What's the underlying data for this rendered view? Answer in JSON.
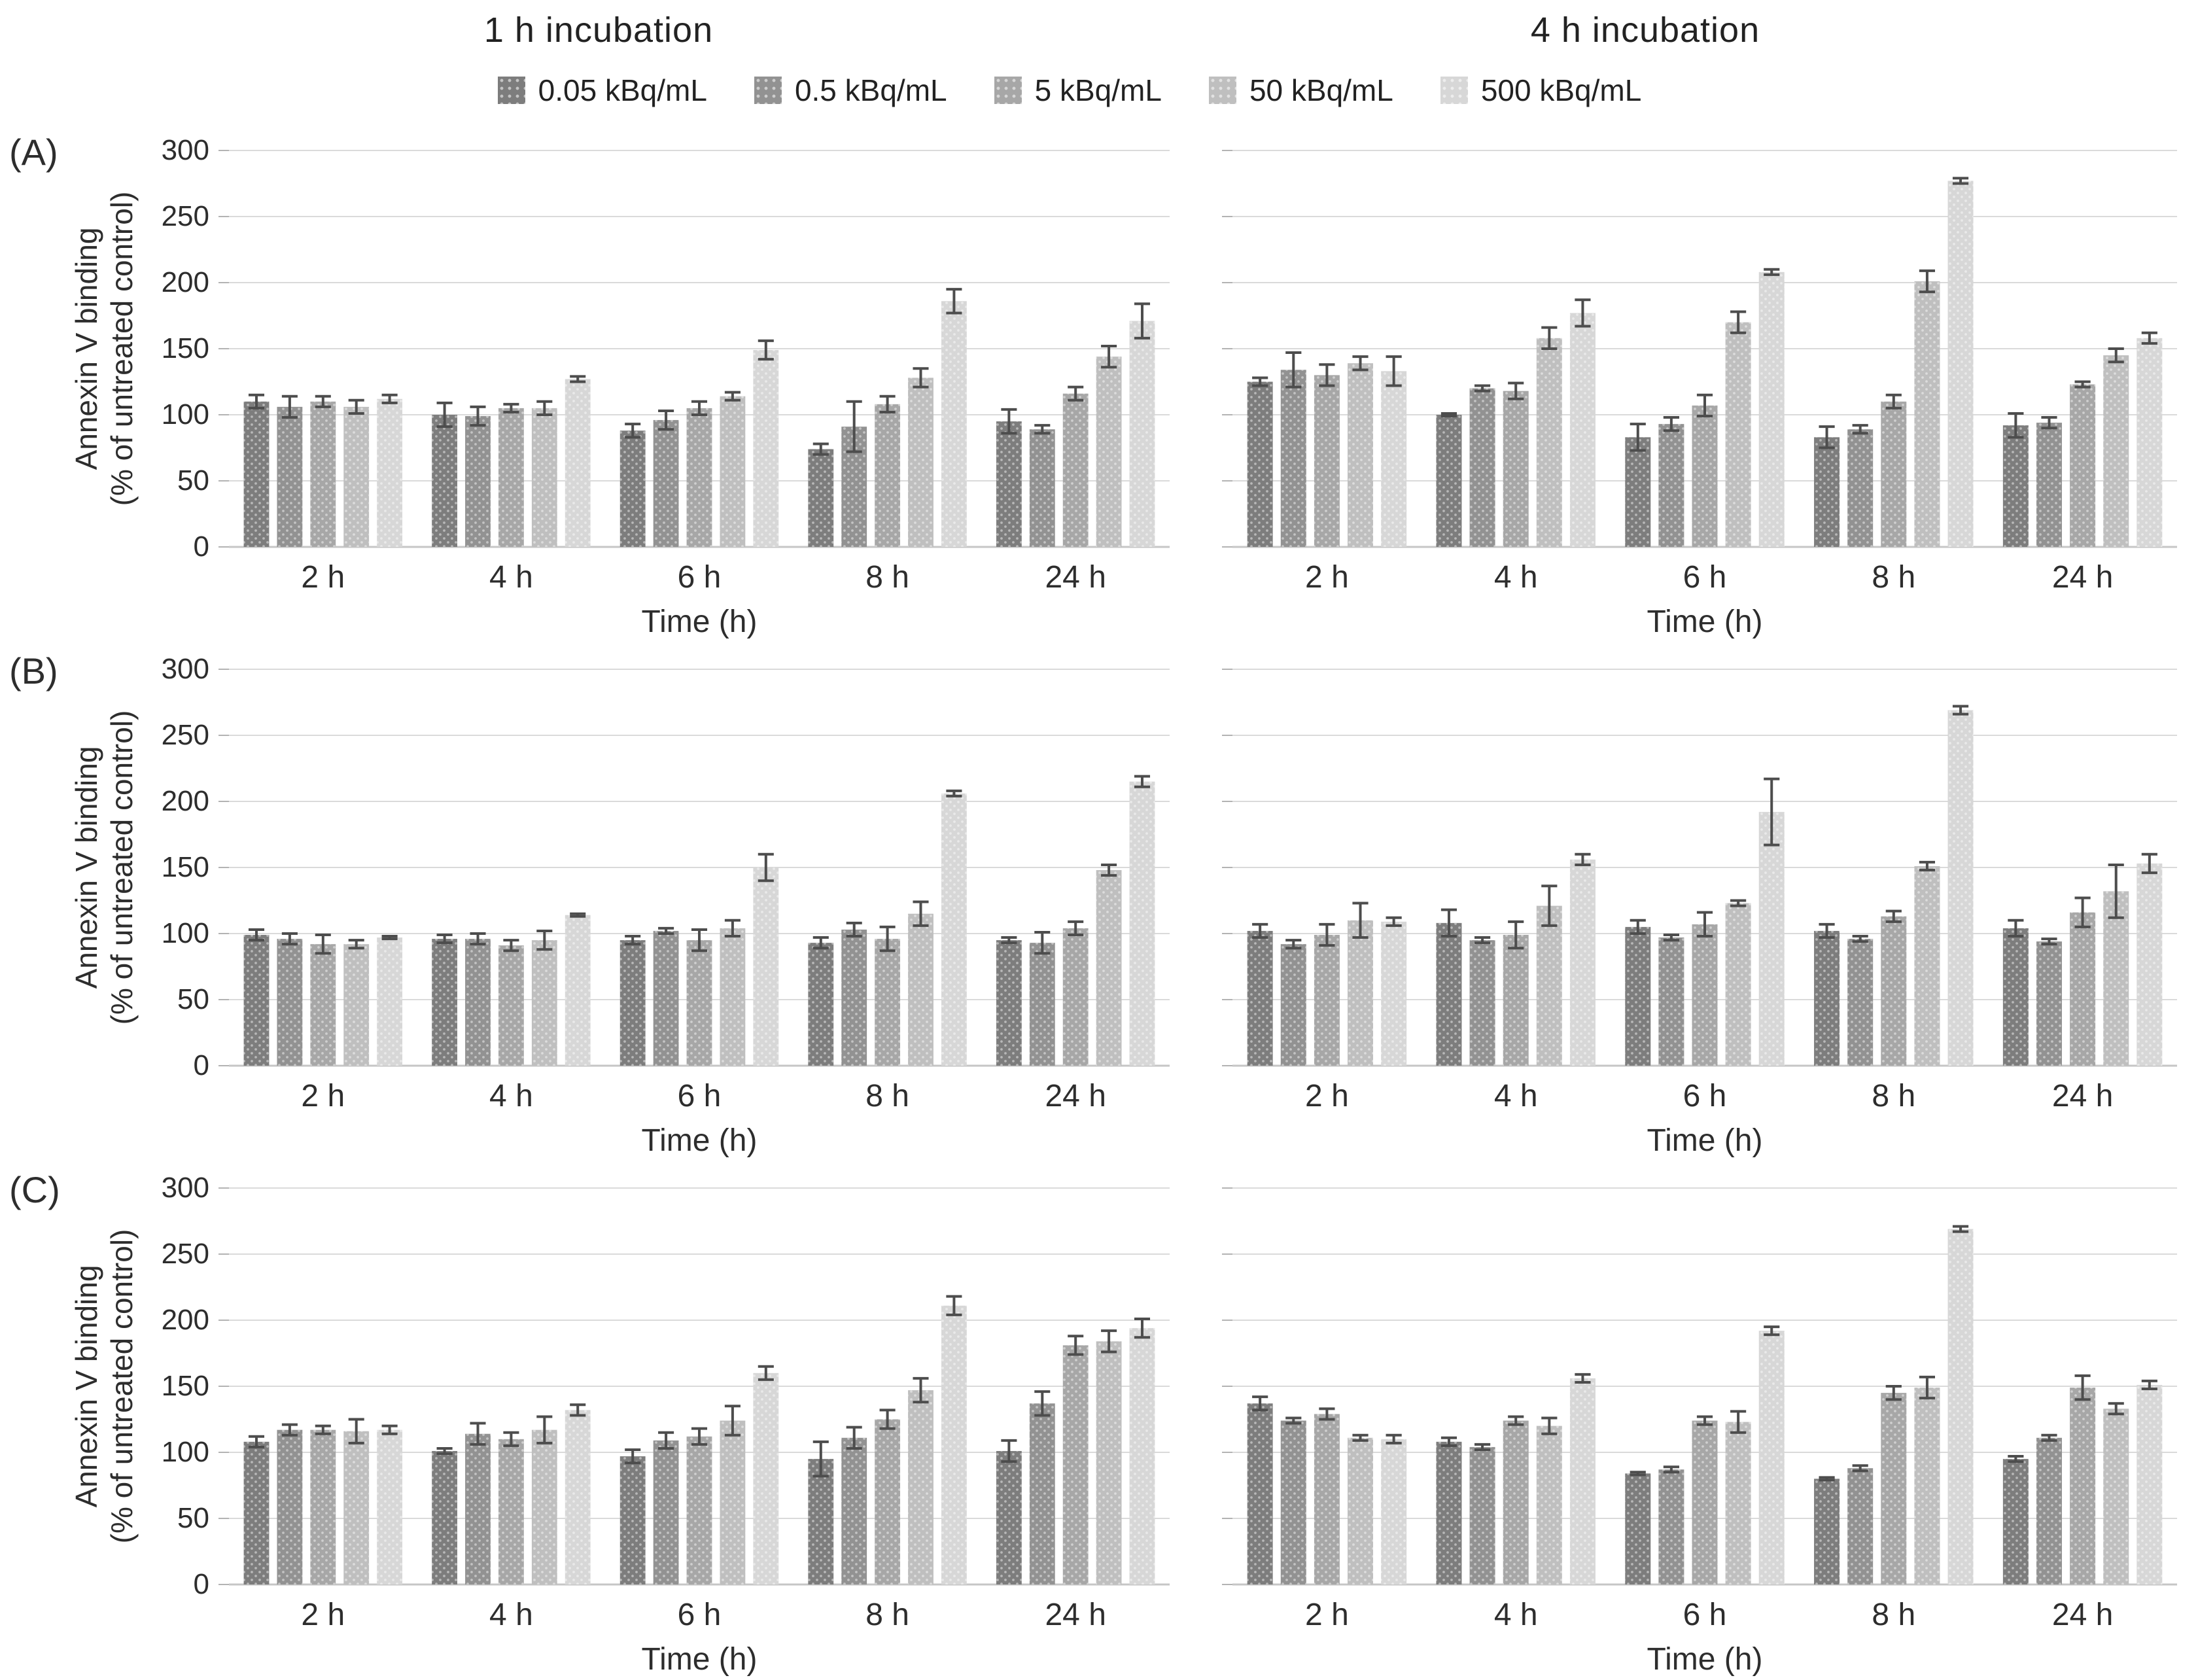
{
  "column_titles": [
    "1 h incubation",
    "4 h incubation"
  ],
  "panel_labels": [
    "(A)",
    "(B)",
    "(C)"
  ],
  "legend": {
    "items": [
      {
        "label": "0.05 kBq/mL",
        "color": "#7d7d7d"
      },
      {
        "label": "0.5 kBq/mL",
        "color": "#929292"
      },
      {
        "label": "5 kBq/mL",
        "color": "#a7a7a7"
      },
      {
        "label": "50 kBq/mL",
        "color": "#bfbfbf"
      },
      {
        "label": "500 kBq/mL",
        "color": "#d7d7d7"
      }
    ]
  },
  "axis": {
    "ylabel_lines": [
      "Annexin V binding",
      "(% of untreated control)"
    ],
    "xlabel": "Time (h)",
    "categories": [
      "2 h",
      "4 h",
      "6 h",
      "8 h",
      "24 h"
    ],
    "yticks": [
      0,
      50,
      100,
      150,
      200,
      250,
      300
    ],
    "ylim": [
      0,
      300
    ]
  },
  "styles": {
    "grid_color": "#dadada",
    "baseline_color": "#c6c6c6",
    "tick_color": "#b3b3b3",
    "error_color": "#4d4d4d",
    "text_color": "#2d2d2d"
  },
  "chart_data": [
    {
      "type": "bar",
      "panel": "A",
      "incubation": "1 h incubation",
      "categories": [
        "2 h",
        "4 h",
        "6 h",
        "8 h",
        "24 h"
      ],
      "ylim": [
        0,
        300
      ],
      "grid": true,
      "y_axis_labels": true,
      "series": [
        {
          "name": "0.05 kBq/mL",
          "color": "#7d7d7d",
          "values": [
            110,
            100,
            88,
            74,
            95
          ],
          "errors": [
            5,
            9,
            5,
            4,
            9
          ]
        },
        {
          "name": "0.5 kBq/mL",
          "color": "#929292",
          "values": [
            106,
            99,
            96,
            91,
            89
          ],
          "errors": [
            8,
            7,
            7,
            19,
            3
          ]
        },
        {
          "name": "5 kBq/mL",
          "color": "#a7a7a7",
          "values": [
            110,
            105,
            105,
            108,
            116
          ],
          "errors": [
            4,
            3,
            5,
            6,
            5
          ]
        },
        {
          "name": "50 kBq/mL",
          "color": "#bfbfbf",
          "values": [
            106,
            105,
            114,
            128,
            144
          ],
          "errors": [
            5,
            5,
            3,
            7,
            8
          ]
        },
        {
          "name": "500 kBq/mL",
          "color": "#d7d7d7",
          "values": [
            112,
            127,
            149,
            186,
            171
          ],
          "errors": [
            3,
            2,
            7,
            9,
            13
          ]
        }
      ]
    },
    {
      "type": "bar",
      "panel": "A",
      "incubation": "4 h incubation",
      "categories": [
        "2 h",
        "4 h",
        "6 h",
        "8 h",
        "24 h"
      ],
      "ylim": [
        0,
        300
      ],
      "grid": true,
      "y_axis_labels": false,
      "series": [
        {
          "name": "0.05 kBq/mL",
          "color": "#7d7d7d",
          "values": [
            125,
            100,
            83,
            83,
            92
          ],
          "errors": [
            3,
            1,
            10,
            8,
            9
          ]
        },
        {
          "name": "0.5 kBq/mL",
          "color": "#929292",
          "values": [
            134,
            120,
            93,
            89,
            94
          ],
          "errors": [
            13,
            2,
            5,
            3,
            4
          ]
        },
        {
          "name": "5 kBq/mL",
          "color": "#a7a7a7",
          "values": [
            130,
            118,
            107,
            110,
            123
          ],
          "errors": [
            8,
            6,
            8,
            5,
            2
          ]
        },
        {
          "name": "50 kBq/mL",
          "color": "#bfbfbf",
          "values": [
            139,
            158,
            170,
            201,
            145
          ],
          "errors": [
            5,
            8,
            8,
            8,
            5
          ]
        },
        {
          "name": "500 kBq/mL",
          "color": "#d7d7d7",
          "values": [
            133,
            177,
            208,
            277,
            158
          ],
          "errors": [
            11,
            10,
            2,
            2,
            4
          ]
        }
      ]
    },
    {
      "type": "bar",
      "panel": "B",
      "incubation": "1 h incubation",
      "categories": [
        "2 h",
        "4 h",
        "6 h",
        "8 h",
        "24 h"
      ],
      "ylim": [
        0,
        300
      ],
      "grid": true,
      "y_axis_labels": true,
      "series": [
        {
          "name": "0.05 kBq/mL",
          "color": "#7d7d7d",
          "values": [
            99,
            96,
            95,
            93,
            95
          ],
          "errors": [
            4,
            3,
            3,
            4,
            2
          ]
        },
        {
          "name": "0.5 kBq/mL",
          "color": "#929292",
          "values": [
            96,
            96,
            102,
            103,
            93
          ],
          "errors": [
            4,
            4,
            2,
            5,
            8
          ]
        },
        {
          "name": "5 kBq/mL",
          "color": "#a7a7a7",
          "values": [
            92,
            91,
            95,
            96,
            104
          ],
          "errors": [
            7,
            4,
            8,
            9,
            5
          ]
        },
        {
          "name": "50 kBq/mL",
          "color": "#bfbfbf",
          "values": [
            92,
            95,
            104,
            115,
            148
          ],
          "errors": [
            3,
            7,
            6,
            9,
            4
          ]
        },
        {
          "name": "500 kBq/mL",
          "color": "#d7d7d7",
          "values": [
            97,
            114,
            150,
            206,
            215
          ],
          "errors": [
            1,
            1,
            10,
            2,
            4
          ]
        }
      ]
    },
    {
      "type": "bar",
      "panel": "B",
      "incubation": "4 h incubation",
      "categories": [
        "2 h",
        "4 h",
        "6 h",
        "8 h",
        "24 h"
      ],
      "ylim": [
        0,
        300
      ],
      "grid": true,
      "y_axis_labels": false,
      "series": [
        {
          "name": "0.05 kBq/mL",
          "color": "#7d7d7d",
          "values": [
            102,
            108,
            105,
            102,
            104
          ],
          "errors": [
            5,
            10,
            5,
            5,
            6
          ]
        },
        {
          "name": "0.5 kBq/mL",
          "color": "#929292",
          "values": [
            92,
            95,
            97,
            96,
            94
          ],
          "errors": [
            3,
            2,
            2,
            2,
            2
          ]
        },
        {
          "name": "5 kBq/mL",
          "color": "#a7a7a7",
          "values": [
            99,
            99,
            107,
            113,
            116
          ],
          "errors": [
            8,
            10,
            9,
            4,
            11
          ]
        },
        {
          "name": "50 kBq/mL",
          "color": "#bfbfbf",
          "values": [
            110,
            121,
            123,
            151,
            132
          ],
          "errors": [
            13,
            15,
            2,
            3,
            20
          ]
        },
        {
          "name": "500 kBq/mL",
          "color": "#d7d7d7",
          "values": [
            109,
            156,
            192,
            269,
            153
          ],
          "errors": [
            3,
            4,
            25,
            3,
            7
          ]
        }
      ]
    },
    {
      "type": "bar",
      "panel": "C",
      "incubation": "1 h incubation",
      "categories": [
        "2 h",
        "4 h",
        "6 h",
        "8 h",
        "24 h"
      ],
      "ylim": [
        0,
        300
      ],
      "grid": true,
      "y_axis_labels": true,
      "series": [
        {
          "name": "0.05 kBq/mL",
          "color": "#7d7d7d",
          "values": [
            108,
            101,
            97,
            95,
            101
          ],
          "errors": [
            4,
            2,
            5,
            13,
            8
          ]
        },
        {
          "name": "0.5 kBq/mL",
          "color": "#929292",
          "values": [
            117,
            114,
            109,
            111,
            137
          ],
          "errors": [
            4,
            8,
            6,
            8,
            9
          ]
        },
        {
          "name": "5 kBq/mL",
          "color": "#a7a7a7",
          "values": [
            117,
            110,
            112,
            125,
            181
          ],
          "errors": [
            3,
            5,
            6,
            7,
            7
          ]
        },
        {
          "name": "50 kBq/mL",
          "color": "#bfbfbf",
          "values": [
            116,
            117,
            124,
            147,
            184
          ],
          "errors": [
            9,
            10,
            11,
            9,
            8
          ]
        },
        {
          "name": "500 kBq/mL",
          "color": "#d7d7d7",
          "values": [
            117,
            132,
            160,
            211,
            194
          ],
          "errors": [
            3,
            4,
            5,
            7,
            7
          ]
        }
      ]
    },
    {
      "type": "bar",
      "panel": "C",
      "incubation": "4 h incubation",
      "categories": [
        "2 h",
        "4 h",
        "6 h",
        "8 h",
        "24 h"
      ],
      "ylim": [
        0,
        300
      ],
      "grid": true,
      "y_axis_labels": false,
      "series": [
        {
          "name": "0.05 kBq/mL",
          "color": "#7d7d7d",
          "values": [
            137,
            108,
            84,
            80,
            95
          ],
          "errors": [
            5,
            3,
            1,
            1,
            2
          ]
        },
        {
          "name": "0.5 kBq/mL",
          "color": "#929292",
          "values": [
            124,
            104,
            87,
            88,
            111
          ],
          "errors": [
            2,
            2,
            2,
            2,
            2
          ]
        },
        {
          "name": "5 kBq/mL",
          "color": "#a7a7a7",
          "values": [
            129,
            124,
            124,
            145,
            149
          ],
          "errors": [
            4,
            3,
            3,
            5,
            9
          ]
        },
        {
          "name": "50 kBq/mL",
          "color": "#bfbfbf",
          "values": [
            111,
            120,
            123,
            149,
            133
          ],
          "errors": [
            2,
            6,
            8,
            8,
            4
          ]
        },
        {
          "name": "500 kBq/mL",
          "color": "#d7d7d7",
          "values": [
            110,
            156,
            192,
            269,
            151
          ],
          "errors": [
            3,
            3,
            3,
            2,
            3
          ]
        }
      ]
    }
  ]
}
